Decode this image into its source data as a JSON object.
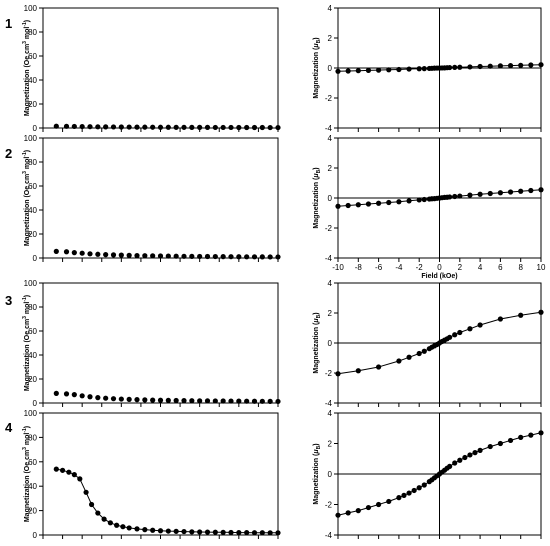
{
  "rows": [
    {
      "label": "1"
    },
    {
      "label": "2"
    },
    {
      "label": "3"
    },
    {
      "label": "4"
    }
  ],
  "chart_data": [
    {
      "panel": "1-left",
      "type": "scatter",
      "line": false,
      "ylabel_main": "Magnetization (Oe cm",
      "ylabel_sup1": "3",
      "ylabel_mid": " mol",
      "ylabel_sup2": "-1",
      "ylabel_end": ")",
      "ylim": [
        0,
        100
      ],
      "yticks": [
        0,
        20,
        40,
        60,
        80,
        100
      ],
      "ytick_labels": [
        "0",
        "20",
        "40",
        "60",
        "80",
        "100"
      ],
      "xlim": [
        0,
        300
      ],
      "xticks_count": 13,
      "x": [
        17,
        30,
        40,
        50,
        60,
        70,
        80,
        90,
        100,
        110,
        120,
        130,
        140,
        150,
        160,
        170,
        180,
        190,
        200,
        210,
        220,
        230,
        240,
        250,
        260,
        270,
        280,
        290,
        300
      ],
      "y": [
        1.5,
        1.4,
        1.3,
        1.2,
        1.1,
        1.0,
        0.95,
        0.9,
        0.85,
        0.8,
        0.75,
        0.7,
        0.65,
        0.6,
        0.6,
        0.55,
        0.55,
        0.5,
        0.5,
        0.5,
        0.45,
        0.45,
        0.45,
        0.4,
        0.4,
        0.4,
        0.4,
        0.35,
        0.35
      ]
    },
    {
      "panel": "1-right",
      "type": "scatter",
      "line": true,
      "ylabel_main": "Magnetization (",
      "ylabel_mu": "μ",
      "ylabel_sub": "B",
      "ylabel_end": ")",
      "ylim": [
        -4,
        4
      ],
      "yticks": [
        -4,
        -2,
        0,
        2,
        4
      ],
      "ytick_labels": [
        "-4",
        "-2",
        "0",
        "2",
        "4"
      ],
      "xlim": [
        -10,
        10
      ],
      "x": [
        -10,
        -9,
        -8,
        -7,
        -6,
        -5,
        -4,
        -3,
        -2,
        -1.5,
        -1,
        -0.75,
        -0.5,
        -0.25,
        0,
        0.25,
        0.5,
        0.75,
        1,
        1.5,
        2,
        3,
        4,
        5,
        6,
        7,
        8,
        9,
        10
      ],
      "y": [
        -0.22,
        -0.2,
        -0.18,
        -0.16,
        -0.14,
        -0.12,
        -0.1,
        -0.07,
        -0.05,
        -0.04,
        -0.03,
        -0.02,
        -0.01,
        -0.005,
        0,
        0.005,
        0.01,
        0.02,
        0.03,
        0.04,
        0.05,
        0.07,
        0.1,
        0.12,
        0.14,
        0.16,
        0.18,
        0.2,
        0.22
      ]
    },
    {
      "panel": "2-left",
      "type": "scatter",
      "line": false,
      "ylabel_main": "Magnetization (Oe cm",
      "ylabel_sup1": "3",
      "ylabel_mid": " mol",
      "ylabel_sup2": "-1",
      "ylabel_end": ")",
      "ylim": [
        0,
        100
      ],
      "yticks": [
        0,
        20,
        40,
        60,
        80,
        100
      ],
      "ytick_labels": [
        "0",
        "20",
        "40",
        "60",
        "80",
        "100"
      ],
      "xlim": [
        0,
        300
      ],
      "xticks_count": 13,
      "x": [
        17,
        30,
        40,
        50,
        60,
        70,
        80,
        90,
        100,
        110,
        120,
        130,
        140,
        150,
        160,
        170,
        180,
        190,
        200,
        210,
        220,
        230,
        240,
        250,
        260,
        270,
        280,
        290,
        300
      ],
      "y": [
        5.5,
        5.2,
        4.5,
        4.0,
        3.5,
        3.1,
        2.8,
        2.6,
        2.4,
        2.2,
        2.0,
        1.9,
        1.8,
        1.7,
        1.6,
        1.5,
        1.4,
        1.35,
        1.3,
        1.25,
        1.2,
        1.15,
        1.1,
        1.05,
        1.0,
        1.0,
        0.95,
        0.9,
        0.9
      ]
    },
    {
      "panel": "2-right",
      "type": "scatter",
      "line": true,
      "ylabel_main": "Magnetization (",
      "ylabel_mu": "μ",
      "ylabel_sub": "B",
      "ylabel_end": ")",
      "ylim": [
        -4,
        4
      ],
      "yticks": [
        -4,
        -2,
        0,
        2,
        4
      ],
      "ytick_labels": [
        "-4",
        "-2",
        "0",
        "2",
        "4"
      ],
      "xlim": [
        -10,
        10
      ],
      "xticks": [
        -10,
        -8,
        -6,
        -4,
        -2,
        0,
        2,
        4,
        6,
        8,
        10
      ],
      "xtick_labels": [
        "-10",
        "-8",
        "-6",
        "-4",
        "-2",
        "0",
        "2",
        "4",
        "6",
        "8",
        "10"
      ],
      "xlabel": "Field (kOe)",
      "x": [
        -10,
        -9,
        -8,
        -7,
        -6,
        -5,
        -4,
        -3,
        -2,
        -1.5,
        -1,
        -0.75,
        -0.5,
        -0.25,
        0,
        0.25,
        0.5,
        0.75,
        1,
        1.5,
        2,
        3,
        4,
        5,
        6,
        7,
        8,
        9,
        10
      ],
      "y": [
        -0.55,
        -0.5,
        -0.45,
        -0.4,
        -0.35,
        -0.3,
        -0.25,
        -0.19,
        -0.13,
        -0.1,
        -0.07,
        -0.05,
        -0.04,
        -0.02,
        0,
        0.02,
        0.04,
        0.05,
        0.07,
        0.1,
        0.13,
        0.19,
        0.25,
        0.3,
        0.35,
        0.4,
        0.45,
        0.5,
        0.55
      ]
    },
    {
      "panel": "3-left",
      "type": "scatter",
      "line": false,
      "ylabel_main": "Magnetization (Oe cm",
      "ylabel_sup1": "3",
      "ylabel_mid": " mol",
      "ylabel_sup2": "-1",
      "ylabel_end": ")",
      "ylim": [
        0,
        100
      ],
      "yticks": [
        0,
        20,
        40,
        60,
        80,
        100
      ],
      "ytick_labels": [
        "0",
        "20",
        "40",
        "60",
        "80",
        "100"
      ],
      "xlim": [
        0,
        300
      ],
      "xticks_count": 13,
      "x": [
        17,
        30,
        40,
        50,
        60,
        70,
        80,
        90,
        100,
        110,
        120,
        130,
        140,
        150,
        160,
        170,
        180,
        190,
        200,
        210,
        220,
        230,
        240,
        250,
        260,
        270,
        280,
        290,
        300
      ],
      "y": [
        8.0,
        7.6,
        7.0,
        6.0,
        5.2,
        4.5,
        4.0,
        3.6,
        3.3,
        3.0,
        2.8,
        2.6,
        2.4,
        2.3,
        2.2,
        2.1,
        2.0,
        1.9,
        1.8,
        1.75,
        1.7,
        1.65,
        1.6,
        1.55,
        1.5,
        1.45,
        1.4,
        1.35,
        1.3
      ]
    },
    {
      "panel": "3-right",
      "type": "scatter",
      "line": true,
      "ylabel_main": "Magnetization (",
      "ylabel_mu": "μ",
      "ylabel_sub": "B",
      "ylabel_end": ")",
      "ylim": [
        -4,
        4
      ],
      "yticks": [
        -4,
        -2,
        0,
        2,
        4
      ],
      "ytick_labels": [
        "-4",
        "-2",
        "0",
        "2",
        "4"
      ],
      "xlim": [
        -10,
        10
      ],
      "x": [
        -10,
        -8,
        -6,
        -4,
        -3,
        -2,
        -1.5,
        -1,
        -0.75,
        -0.5,
        -0.25,
        0,
        0.25,
        0.5,
        0.75,
        1,
        1.5,
        2,
        3,
        4,
        6,
        8,
        10
      ],
      "y": [
        -2.05,
        -1.85,
        -1.6,
        -1.2,
        -0.95,
        -0.7,
        -0.55,
        -0.38,
        -0.28,
        -0.19,
        -0.1,
        0,
        0.1,
        0.19,
        0.28,
        0.38,
        0.55,
        0.7,
        0.95,
        1.2,
        1.6,
        1.85,
        2.05
      ]
    },
    {
      "panel": "4-left",
      "type": "scatter",
      "line": true,
      "ylabel_main": "Magnetization (Oe cm",
      "ylabel_sup1": "3",
      "ylabel_mid": " mol",
      "ylabel_sup2": "-1",
      "ylabel_end": ")",
      "ylim": [
        0,
        100
      ],
      "yticks": [
        0,
        20,
        40,
        60,
        80,
        100
      ],
      "ytick_labels": [
        "0",
        "20",
        "40",
        "60",
        "80",
        "100"
      ],
      "xlim": [
        0,
        300
      ],
      "xticks_count": 13,
      "x": [
        17,
        25,
        33,
        40,
        47,
        55,
        62,
        70,
        78,
        86,
        94,
        102,
        110,
        120,
        130,
        140,
        150,
        160,
        170,
        180,
        190,
        200,
        210,
        220,
        230,
        240,
        250,
        260,
        270,
        280,
        290,
        300
      ],
      "y": [
        54,
        53,
        51.5,
        49.5,
        46,
        35,
        25,
        18,
        13,
        10,
        8,
        6.8,
        5.8,
        5.0,
        4.4,
        3.9,
        3.5,
        3.2,
        3.0,
        2.8,
        2.6,
        2.5,
        2.4,
        2.3,
        2.2,
        2.1,
        2.0,
        2.0,
        1.9,
        1.9,
        1.8,
        1.8
      ]
    },
    {
      "panel": "4-right",
      "type": "scatter",
      "line": true,
      "ylabel_main": "Magnetization (",
      "ylabel_mu": "μ",
      "ylabel_sub": "B",
      "ylabel_end": ")",
      "ylim": [
        -4,
        4
      ],
      "yticks": [
        -4,
        -2,
        0,
        2,
        4
      ],
      "ytick_labels": [
        "-4",
        "-2",
        "0",
        "2",
        "4"
      ],
      "xlim": [
        -10,
        10
      ],
      "x": [
        -10,
        -9,
        -8,
        -7,
        -6,
        -5,
        -4,
        -3.5,
        -3,
        -2.5,
        -2,
        -1.5,
        -1,
        -0.75,
        -0.5,
        -0.25,
        0,
        0.25,
        0.5,
        0.75,
        1,
        1.5,
        2,
        2.5,
        3,
        3.5,
        4,
        5,
        6,
        7,
        8,
        9,
        10
      ],
      "y": [
        -2.7,
        -2.55,
        -2.4,
        -2.2,
        -2.0,
        -1.8,
        -1.55,
        -1.4,
        -1.25,
        -1.08,
        -0.9,
        -0.72,
        -0.5,
        -0.38,
        -0.25,
        -0.12,
        0,
        0.12,
        0.25,
        0.38,
        0.5,
        0.72,
        0.9,
        1.08,
        1.25,
        1.4,
        1.55,
        1.8,
        2.0,
        2.2,
        2.4,
        2.55,
        2.7
      ]
    }
  ]
}
